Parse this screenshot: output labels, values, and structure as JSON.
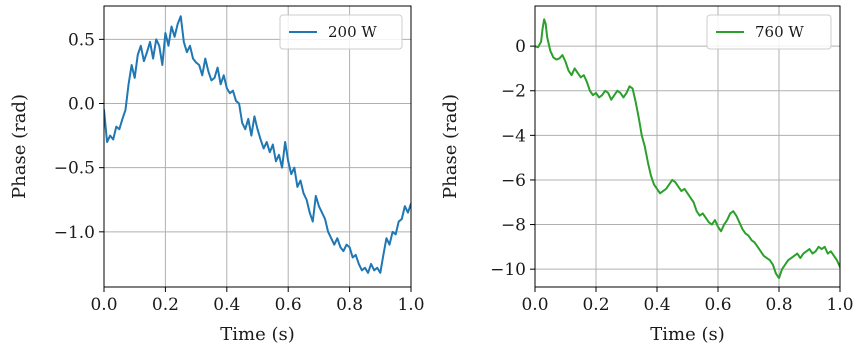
{
  "chart_data": [
    {
      "type": "line",
      "xlabel": "Time (s)",
      "ylabel": "Phase (rad)",
      "xlim": [
        0.0,
        1.0
      ],
      "ylim": [
        -1.43,
        0.76
      ],
      "xticks": [
        0.0,
        0.2,
        0.4,
        0.6,
        0.8,
        1.0
      ],
      "xtick_labels": [
        "0.0",
        "0.2",
        "0.4",
        "0.6",
        "0.8",
        "1.0"
      ],
      "yticks": [
        0.5,
        0.0,
        -0.5,
        -1.0
      ],
      "ytick_labels": [
        "0.5",
        "0.0",
        "−0.5",
        "−1.0"
      ],
      "grid": true,
      "legend": "top-right",
      "series": [
        {
          "name": "200 W",
          "color": "#1f77b4",
          "x": [
            0.0,
            0.01,
            0.02,
            0.03,
            0.04,
            0.05,
            0.06,
            0.07,
            0.08,
            0.09,
            0.1,
            0.11,
            0.12,
            0.13,
            0.14,
            0.15,
            0.16,
            0.17,
            0.18,
            0.19,
            0.2,
            0.21,
            0.22,
            0.23,
            0.24,
            0.25,
            0.26,
            0.27,
            0.28,
            0.29,
            0.3,
            0.31,
            0.32,
            0.33,
            0.34,
            0.35,
            0.36,
            0.37,
            0.38,
            0.39,
            0.4,
            0.41,
            0.42,
            0.43,
            0.44,
            0.45,
            0.46,
            0.47,
            0.48,
            0.49,
            0.5,
            0.51,
            0.52,
            0.53,
            0.54,
            0.55,
            0.56,
            0.57,
            0.58,
            0.59,
            0.6,
            0.61,
            0.62,
            0.63,
            0.64,
            0.65,
            0.66,
            0.67,
            0.68,
            0.69,
            0.7,
            0.71,
            0.72,
            0.73,
            0.74,
            0.75,
            0.76,
            0.77,
            0.78,
            0.79,
            0.8,
            0.81,
            0.82,
            0.83,
            0.84,
            0.85,
            0.86,
            0.87,
            0.88,
            0.89,
            0.9,
            0.91,
            0.92,
            0.93,
            0.94,
            0.95,
            0.96,
            0.97,
            0.98,
            0.99,
            1.0
          ],
          "y": [
            -0.05,
            -0.3,
            -0.25,
            -0.28,
            -0.18,
            -0.2,
            -0.12,
            -0.05,
            0.15,
            0.3,
            0.2,
            0.38,
            0.45,
            0.33,
            0.4,
            0.48,
            0.35,
            0.5,
            0.45,
            0.3,
            0.55,
            0.45,
            0.6,
            0.52,
            0.62,
            0.68,
            0.48,
            0.4,
            0.45,
            0.35,
            0.32,
            0.3,
            0.22,
            0.35,
            0.25,
            0.18,
            0.2,
            0.28,
            0.15,
            0.22,
            0.12,
            0.08,
            0.1,
            0.02,
            0.0,
            -0.15,
            -0.2,
            -0.12,
            -0.25,
            -0.1,
            -0.2,
            -0.28,
            -0.35,
            -0.3,
            -0.38,
            -0.32,
            -0.45,
            -0.4,
            -0.5,
            -0.3,
            -0.45,
            -0.55,
            -0.5,
            -0.65,
            -0.6,
            -0.7,
            -0.75,
            -0.85,
            -0.92,
            -0.72,
            -0.8,
            -0.85,
            -0.9,
            -1.0,
            -1.05,
            -1.1,
            -1.05,
            -1.12,
            -1.15,
            -1.1,
            -1.12,
            -1.2,
            -1.18,
            -1.25,
            -1.3,
            -1.28,
            -1.32,
            -1.25,
            -1.3,
            -1.28,
            -1.32,
            -1.18,
            -1.05,
            -1.1,
            -1.0,
            -1.02,
            -0.92,
            -0.9,
            -0.8,
            -0.85,
            -0.78
          ]
        }
      ]
    },
    {
      "type": "line",
      "xlabel": "Time (s)",
      "ylabel": "Phase (rad)",
      "xlim": [
        0.0,
        1.0
      ],
      "ylim": [
        -10.8,
        1.8
      ],
      "xticks": [
        0.0,
        0.2,
        0.4,
        0.6,
        0.8,
        1.0
      ],
      "xtick_labels": [
        "0.0",
        "0.2",
        "0.4",
        "0.6",
        "0.8",
        "1.0"
      ],
      "yticks": [
        0,
        -2,
        -4,
        -6,
        -8,
        -10
      ],
      "ytick_labels": [
        "0",
        "−2",
        "−4",
        "−6",
        "−8",
        "−10"
      ],
      "grid": true,
      "legend": "top-right",
      "series": [
        {
          "name": "760 W",
          "color": "#2ca02c",
          "x": [
            0.0,
            0.01,
            0.02,
            0.025,
            0.03,
            0.035,
            0.04,
            0.05,
            0.06,
            0.07,
            0.08,
            0.09,
            0.1,
            0.11,
            0.12,
            0.13,
            0.14,
            0.15,
            0.16,
            0.17,
            0.18,
            0.19,
            0.2,
            0.21,
            0.22,
            0.23,
            0.24,
            0.25,
            0.26,
            0.27,
            0.28,
            0.29,
            0.3,
            0.31,
            0.32,
            0.33,
            0.34,
            0.35,
            0.36,
            0.37,
            0.38,
            0.39,
            0.4,
            0.41,
            0.42,
            0.43,
            0.44,
            0.45,
            0.46,
            0.47,
            0.48,
            0.49,
            0.5,
            0.51,
            0.52,
            0.53,
            0.54,
            0.55,
            0.56,
            0.57,
            0.58,
            0.59,
            0.6,
            0.61,
            0.62,
            0.63,
            0.64,
            0.65,
            0.66,
            0.67,
            0.68,
            0.69,
            0.7,
            0.71,
            0.72,
            0.73,
            0.74,
            0.75,
            0.76,
            0.77,
            0.78,
            0.79,
            0.8,
            0.81,
            0.82,
            0.83,
            0.84,
            0.85,
            0.86,
            0.87,
            0.88,
            0.89,
            0.9,
            0.91,
            0.92,
            0.93,
            0.94,
            0.95,
            0.96,
            0.97,
            0.98,
            0.99,
            1.0
          ],
          "y": [
            0.0,
            -0.05,
            0.2,
            0.8,
            1.2,
            1.0,
            0.4,
            -0.2,
            -0.5,
            -0.6,
            -0.55,
            -0.4,
            -0.7,
            -1.1,
            -1.3,
            -1.0,
            -1.2,
            -1.4,
            -1.3,
            -1.6,
            -2.0,
            -2.2,
            -2.1,
            -2.3,
            -2.2,
            -2.0,
            -2.1,
            -2.4,
            -2.2,
            -2.0,
            -2.1,
            -2.3,
            -2.1,
            -1.8,
            -1.9,
            -2.5,
            -3.2,
            -4.0,
            -4.5,
            -5.2,
            -5.8,
            -6.2,
            -6.4,
            -6.6,
            -6.5,
            -6.4,
            -6.2,
            -6.0,
            -6.1,
            -6.3,
            -6.5,
            -6.4,
            -6.6,
            -6.8,
            -7.0,
            -7.4,
            -7.6,
            -7.5,
            -7.7,
            -7.9,
            -8.0,
            -7.8,
            -8.1,
            -8.3,
            -8.0,
            -7.8,
            -7.5,
            -7.4,
            -7.6,
            -7.9,
            -8.2,
            -8.4,
            -8.5,
            -8.7,
            -8.8,
            -9.0,
            -9.2,
            -9.4,
            -9.5,
            -9.6,
            -9.8,
            -10.2,
            -10.4,
            -10.0,
            -9.8,
            -9.6,
            -9.5,
            -9.4,
            -9.3,
            -9.5,
            -9.3,
            -9.2,
            -9.1,
            -9.3,
            -9.2,
            -9.0,
            -9.1,
            -9.0,
            -9.3,
            -9.2,
            -9.4,
            -9.6,
            -9.9
          ]
        }
      ]
    }
  ]
}
